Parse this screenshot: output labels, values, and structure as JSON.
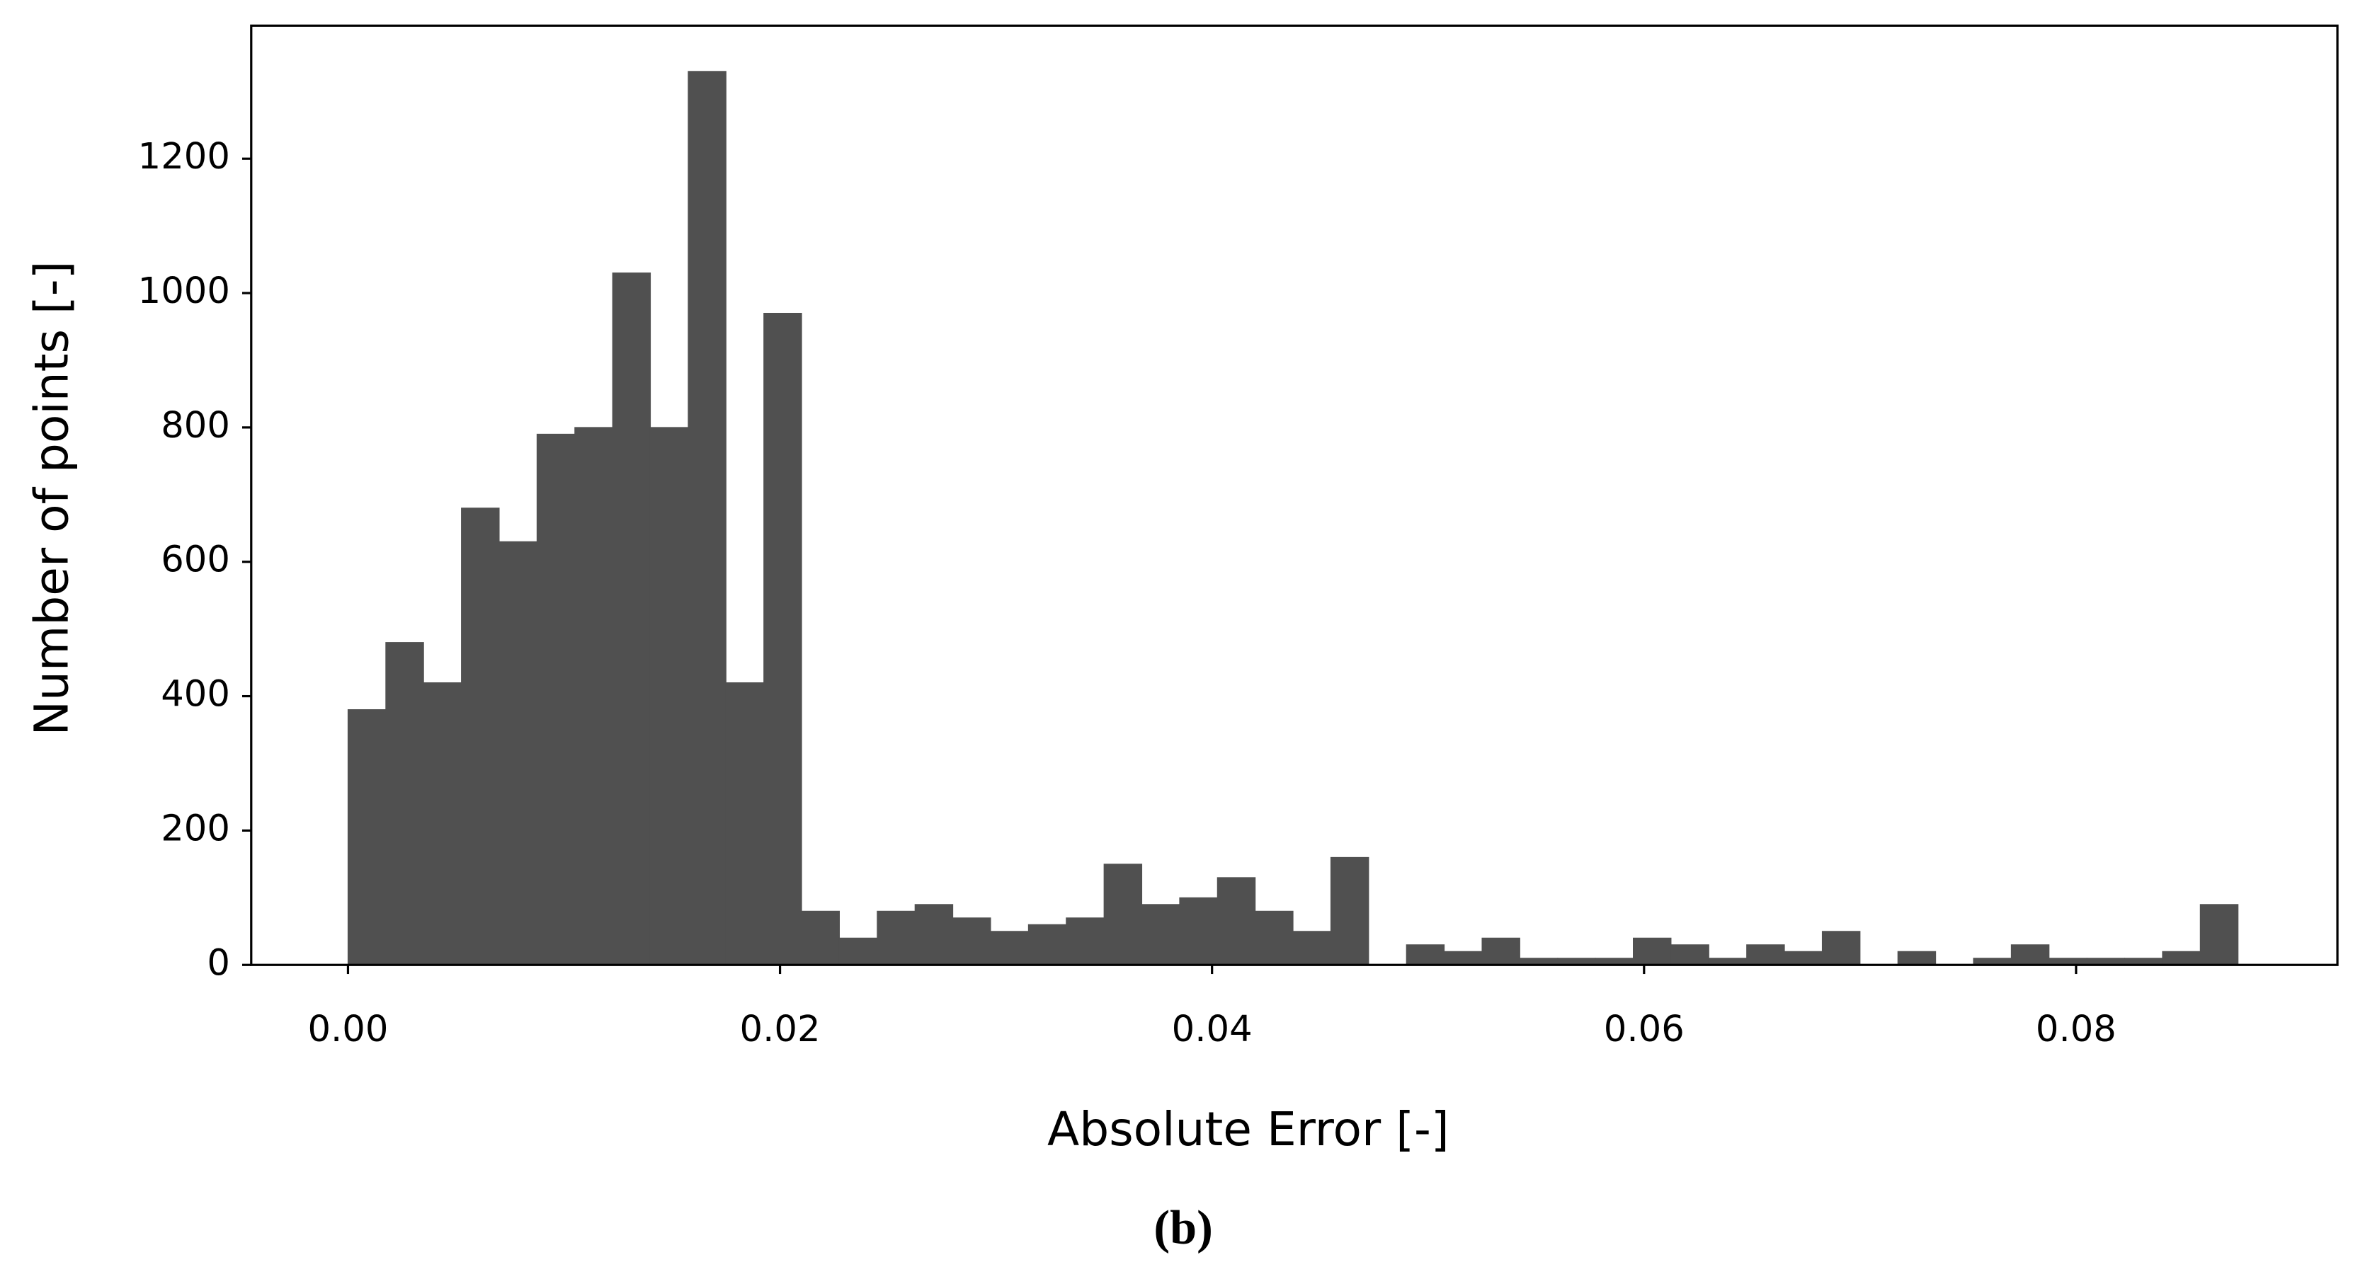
{
  "chart_data": {
    "type": "histogram",
    "xlabel": "Absolute Error [-]",
    "ylabel": "Number of points [-]",
    "caption": "(b)",
    "color": "#505050",
    "bins": [
      0,
      0.00175,
      0.0035,
      0.00525,
      0.007,
      0.00875,
      0.0105,
      0.01225,
      0.014,
      0.01575,
      0.0175,
      0.01925,
      0.021,
      0.02275,
      0.0245,
      0.02625,
      0.028,
      0.02975,
      0.0315,
      0.03325,
      0.035,
      0.03675,
      0.0385,
      0.04025,
      0.042,
      0.04375,
      0.0455,
      0.04725,
      0.049,
      0.05075,
      0.0525,
      0.05425,
      0.056,
      0.05775,
      0.0595,
      0.06125,
      0.063,
      0.06475,
      0.0665,
      0.06825,
      0.07,
      0.07175,
      0.0735,
      0.07525,
      0.077,
      0.07875,
      0.0805,
      0.08225,
      0.084,
      0.08575,
      0.0875
    ],
    "values": [
      380,
      480,
      420,
      680,
      630,
      790,
      800,
      1030,
      800,
      1330,
      420,
      970,
      80,
      40,
      80,
      90,
      70,
      50,
      60,
      70,
      150,
      90,
      100,
      130,
      80,
      50,
      160,
      0,
      30,
      20,
      40,
      10,
      10,
      10,
      40,
      30,
      10,
      30,
      20,
      50,
      0,
      20,
      0,
      10,
      30,
      10,
      10,
      10,
      20,
      90
    ],
    "xlim": [
      -0.00448,
      0.0921
    ],
    "ylim": [
      0,
      1398
    ],
    "xticks": [
      {
        "value": 0,
        "label": "0.00"
      },
      {
        "value": 0.02,
        "label": "0.02"
      },
      {
        "value": 0.04,
        "label": "0.04"
      },
      {
        "value": 0.06,
        "label": "0.06"
      },
      {
        "value": 0.08,
        "label": "0.08"
      }
    ],
    "yticks": [
      0,
      200,
      400,
      600,
      800,
      1000,
      1200
    ]
  }
}
